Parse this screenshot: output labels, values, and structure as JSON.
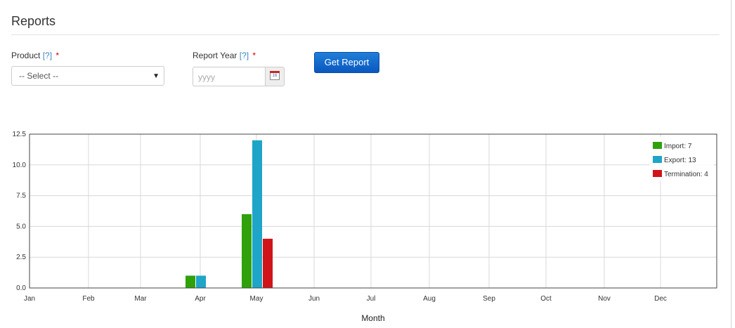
{
  "page": {
    "title": "Reports"
  },
  "form": {
    "product": {
      "label": "Product",
      "help": "[?]",
      "required": "*",
      "selected": "-- Select --"
    },
    "report_year": {
      "label": "Report Year",
      "help": "[?]",
      "required": "*",
      "placeholder": "yyyy",
      "calendar_icon_text": "16"
    },
    "get_report_label": "Get Report"
  },
  "colors": {
    "accent": "#0a6fd0",
    "import": "#2ea10b",
    "export": "#1ea5c8",
    "termination": "#d0141a"
  },
  "chart_data": {
    "type": "bar",
    "categories": [
      "Jan",
      "Feb",
      "Mar",
      "Apr",
      "May",
      "Jun",
      "Jul",
      "Aug",
      "Sep",
      "Oct",
      "Nov",
      "Dec"
    ],
    "series": [
      {
        "name": "Import: 7",
        "color": "#2ea10b",
        "values": [
          0,
          0,
          0,
          1,
          6,
          0,
          0,
          0,
          0,
          0,
          0,
          0
        ]
      },
      {
        "name": "Export: 13",
        "color": "#1ea5c8",
        "values": [
          0,
          0,
          0,
          1,
          12,
          0,
          0,
          0,
          0,
          0,
          0,
          0
        ]
      },
      {
        "name": "Termination: 4",
        "color": "#d0141a",
        "values": [
          0,
          0,
          0,
          0,
          4,
          0,
          0,
          0,
          0,
          0,
          0,
          0
        ]
      }
    ],
    "xlabel": "Month",
    "ylabel": "",
    "ylim": [
      0,
      12.5
    ],
    "yticks": [
      "0.0",
      "2.5",
      "5.0",
      "7.5",
      "10.0",
      "12.5"
    ],
    "grid": true,
    "legend_position": "top-right"
  }
}
